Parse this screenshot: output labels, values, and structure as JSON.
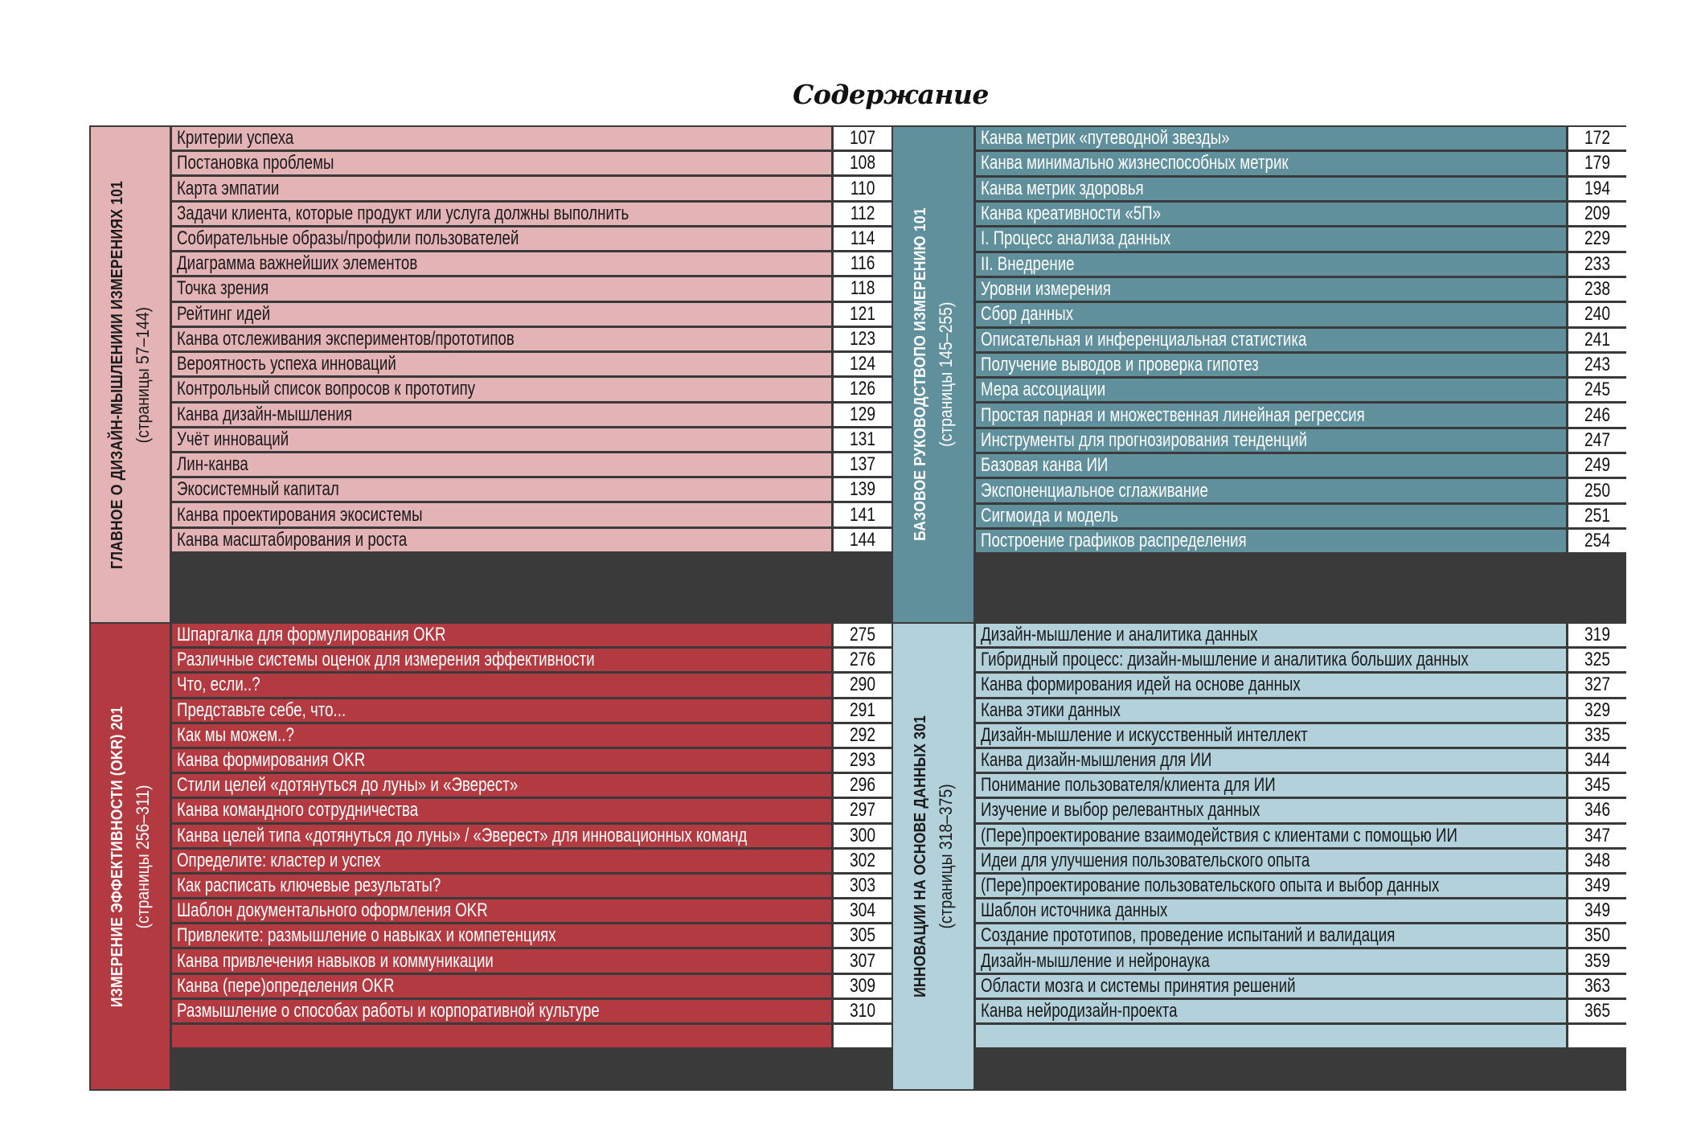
{
  "title": "Содержание",
  "sections": [
    {
      "name": "ГЛАВНОЕ О ДИЗАЙН-МЫШЛЕНИИИ ИЗМЕРЕНИЯХ 101",
      "pages": "(страницы 57–144)",
      "bg": "#e4b3b6",
      "text_color": "#1a1a1a",
      "items": [
        {
          "title": "Критерии успеха",
          "page": "107"
        },
        {
          "title": "Постановка проблемы",
          "page": "108"
        },
        {
          "title": "Карта эмпатии",
          "page": "110"
        },
        {
          "title": "Задачи клиента, которые продукт или услуга должны выполнить",
          "page": "112"
        },
        {
          "title": "Собирательные образы/профили пользователей",
          "page": "114"
        },
        {
          "title": "Диаграмма важнейших элементов",
          "page": "116"
        },
        {
          "title": "Точка зрения",
          "page": "118"
        },
        {
          "title": "Рейтинг идей",
          "page": "121"
        },
        {
          "title": "Канва отслеживания экспериментов/прототипов",
          "page": "123"
        },
        {
          "title": "Вероятность успеха инноваций",
          "page": "124"
        },
        {
          "title": "Контрольный список вопросов к прототипу",
          "page": "126"
        },
        {
          "title": "Канва дизайн-мышления",
          "page": "129"
        },
        {
          "title": "Учёт инноваций",
          "page": "131"
        },
        {
          "title": "Лин-канва",
          "page": "137"
        },
        {
          "title": "Экосистемный капитал",
          "page": "139"
        },
        {
          "title": "Канва проектирования экосистемы",
          "page": "141"
        },
        {
          "title": "Канва масштабирования и роста",
          "page": "144"
        }
      ]
    },
    {
      "name": "БАЗОВОЕ РУКОВОДСТВОПО ИЗМЕРЕНИЮ 101",
      "pages": "(страницы 145–255)",
      "bg": "#5f909c",
      "text_color": "#ffffff",
      "items": [
        {
          "title": "Канва метрик «путеводной звезды»",
          "page": "172"
        },
        {
          "title": "Канва минимально жизнеспособных метрик",
          "page": "179"
        },
        {
          "title": "Канва метрик здоровья",
          "page": "194"
        },
        {
          "title": "Канва креативности «5П»",
          "page": "209"
        },
        {
          "title": "I. Процесс анализа данных",
          "page": "229"
        },
        {
          "title": "II. Внедрение",
          "page": "233"
        },
        {
          "title": "Уровни измерения",
          "page": "238"
        },
        {
          "title": "Сбор данных",
          "page": "240"
        },
        {
          "title": "Описательная и инференциальная статистика",
          "page": "241"
        },
        {
          "title": "Получение выводов и проверка гипотез",
          "page": "243"
        },
        {
          "title": "Мера ассоциации",
          "page": "245"
        },
        {
          "title": "Простая парная и множественная линейная регрессия",
          "page": "246"
        },
        {
          "title": "Инструменты для прогнозирования тенденций",
          "page": "247"
        },
        {
          "title": "Базовая канва ИИ",
          "page": "249"
        },
        {
          "title": "Экспоненциальное сглаживание",
          "page": "250"
        },
        {
          "title": "Сигмоида и модель",
          "page": "251"
        },
        {
          "title": "Построение графиков распределения",
          "page": "254"
        }
      ]
    },
    {
      "name": "ИЗМЕРЕНИЕ ЭФФЕКТИВНОСТИ (OKR) 201",
      "pages": "(страницы 256–311)",
      "bg": "#b23a40",
      "text_color": "#ffffff",
      "items": [
        {
          "title": "Шпаргалка для формулирования OKR",
          "page": "275"
        },
        {
          "title": "Различные системы оценок для измерения эффективности",
          "page": "276"
        },
        {
          "title": "Что, если..?",
          "page": "290"
        },
        {
          "title": "Представьте себе, что...",
          "page": "291"
        },
        {
          "title": "Как мы можем..?",
          "page": "292"
        },
        {
          "title": "Канва формирования OKR",
          "page": "293"
        },
        {
          "title": "Стили целей «дотянуться до луны» и «Эверест»",
          "page": "296"
        },
        {
          "title": "Канва командного сотрудничества",
          "page": "297"
        },
        {
          "title": "Канва целей типа «дотянуться до луны» / «Эверест» для инновационных команд",
          "page": "300"
        },
        {
          "title": "Определите: кластер и успех",
          "page": "302"
        },
        {
          "title": "Как расписать ключевые результаты?",
          "page": "303"
        },
        {
          "title": "Шаблон документального оформления OKR",
          "page": "304"
        },
        {
          "title": "Привлеките: размышление о навыках и компетенциях",
          "page": "305"
        },
        {
          "title": "Канва привлечения навыков и коммуникации",
          "page": "307"
        },
        {
          "title": "Канва (пере)определения OKR",
          "page": "309"
        },
        {
          "title": "Размышление о способах работы и корпоративной культуре",
          "page": "310"
        }
      ]
    },
    {
      "name": "ИННОВАЦИИ НА ОСНОВЕ ДАННЫХ 301",
      "pages": "(страницы 318–375)",
      "bg": "#b3d1db",
      "text_color": "#1a1a1a",
      "items": [
        {
          "title": "Дизайн-мышление и аналитика данных",
          "page": "319"
        },
        {
          "title": "Гибридный процесс: дизайн-мышление и аналитика больших данных",
          "page": "325"
        },
        {
          "title": "Канва формирования идей на основе данных",
          "page": "327"
        },
        {
          "title": "Канва этики данных",
          "page": "329"
        },
        {
          "title": "Дизайн-мышление и искусственный интеллект",
          "page": "335"
        },
        {
          "title": "Канва дизайн-мышления для ИИ",
          "page": "344"
        },
        {
          "title": "Понимание пользователя/клиента для ИИ",
          "page": "345"
        },
        {
          "title": "Изучение и выбор релевантных данных",
          "page": "346"
        },
        {
          "title": "(Пере)проектирование взаимодействия с клиентами с помощью ИИ",
          "page": "347"
        },
        {
          "title": "Идеи для улучшения пользовательского опыта",
          "page": "348"
        },
        {
          "title": "(Пере)проектирование пользовательского опыта и выбор данных",
          "page": "349"
        },
        {
          "title": "Шаблон источника данных",
          "page": "349"
        },
        {
          "title": "Создание прототипов, проведение испытаний и валидация",
          "page": "350"
        },
        {
          "title": "Дизайн-мышление и нейронаука",
          "page": "359"
        },
        {
          "title": "Области мозга и системы принятия решений",
          "page": "363"
        },
        {
          "title": "Канва нейродизайн-проекта",
          "page": "365"
        }
      ]
    }
  ]
}
